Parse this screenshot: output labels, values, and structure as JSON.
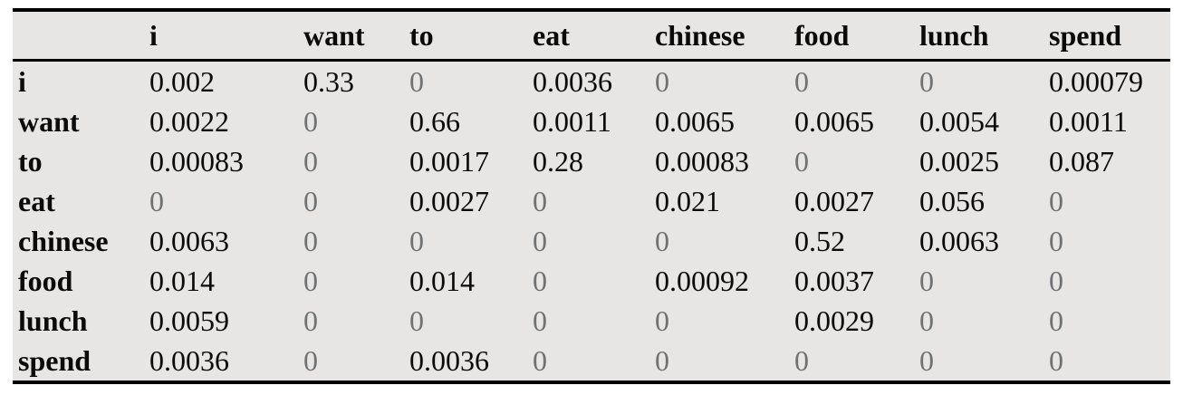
{
  "table": {
    "title": "bigram-probability-table",
    "columns": [
      "",
      "i",
      "want",
      "to",
      "eat",
      "chinese",
      "food",
      "lunch",
      "spend"
    ],
    "rows": [
      {
        "label": "i",
        "values": [
          "0.002",
          "0.33",
          "0",
          "0.0036",
          "0",
          "0",
          "0",
          "0.00079"
        ]
      },
      {
        "label": "want",
        "values": [
          "0.0022",
          "0",
          "0.66",
          "0.0011",
          "0.0065",
          "0.0065",
          "0.0054",
          "0.0011"
        ]
      },
      {
        "label": "to",
        "values": [
          "0.00083",
          "0",
          "0.0017",
          "0.28",
          "0.00083",
          "0",
          "0.0025",
          "0.087"
        ]
      },
      {
        "label": "eat",
        "values": [
          "0",
          "0",
          "0.0027",
          "0",
          "0.021",
          "0.0027",
          "0.056",
          "0"
        ]
      },
      {
        "label": "chinese",
        "values": [
          "0.0063",
          "0",
          "0",
          "0",
          "0",
          "0.52",
          "0.0063",
          "0"
        ]
      },
      {
        "label": "food",
        "values": [
          "0.014",
          "0",
          "0.014",
          "0",
          "0.00092",
          "0.0037",
          "0",
          "0"
        ]
      },
      {
        "label": "lunch",
        "values": [
          "0.0059",
          "0",
          "0",
          "0",
          "0",
          "0.0029",
          "0",
          "0"
        ]
      },
      {
        "label": "spend",
        "values": [
          "0.0036",
          "0",
          "0.0036",
          "0",
          "0",
          "0",
          "0",
          "0"
        ]
      }
    ],
    "zero_display": "0"
  },
  "colors": {
    "table_background": "#e7e6e4",
    "page_background": "#ffffff",
    "text": "#0b0b0b",
    "zero_text": "#6f7173",
    "rule": "#000000"
  }
}
